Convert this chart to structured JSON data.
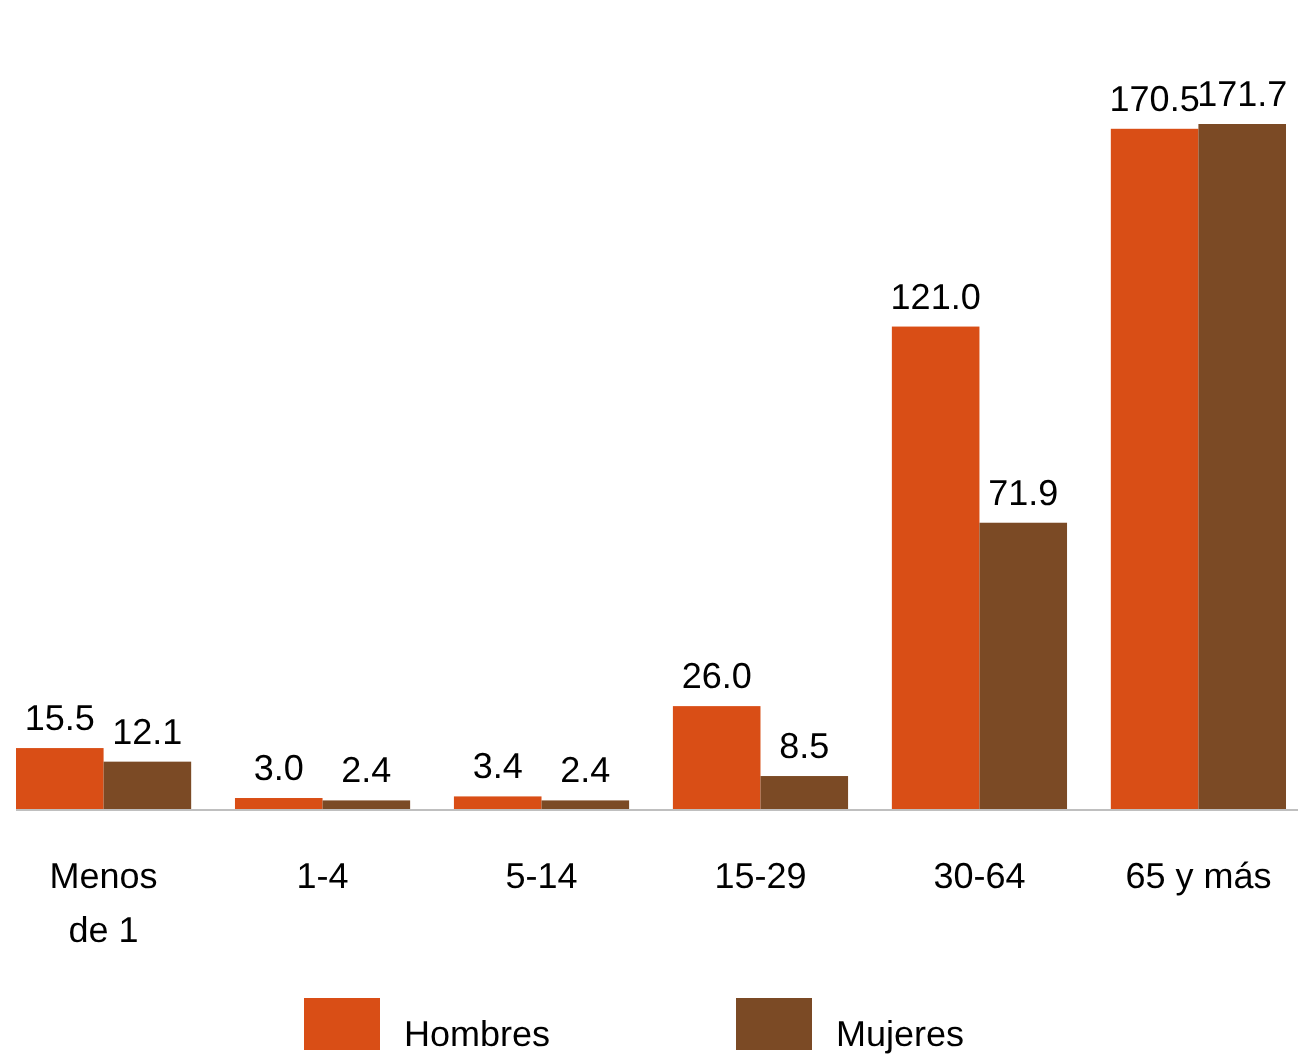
{
  "chart_data": {
    "type": "bar",
    "categories": [
      "Menos\nde 1",
      "1-4",
      "5-14",
      "15-29",
      "30-64",
      "65 y más"
    ],
    "series": [
      {
        "name": "Hombres",
        "color": "#d94e16",
        "values": [
          15.5,
          3.0,
          3.4,
          26.0,
          121.0,
          170.5
        ],
        "value_labels": [
          "15.5",
          "3.0",
          "3.4",
          "26.0",
          "121.0",
          "170.5"
        ]
      },
      {
        "name": "Mujeres",
        "color": "#7b4a25",
        "values": [
          12.1,
          2.4,
          2.4,
          8.5,
          71.9,
          171.7
        ],
        "value_labels": [
          "12.1",
          "2.4",
          "2.4",
          "8.5",
          "71.9",
          "171.7"
        ]
      }
    ],
    "legend": "bottom",
    "grid": false
  }
}
